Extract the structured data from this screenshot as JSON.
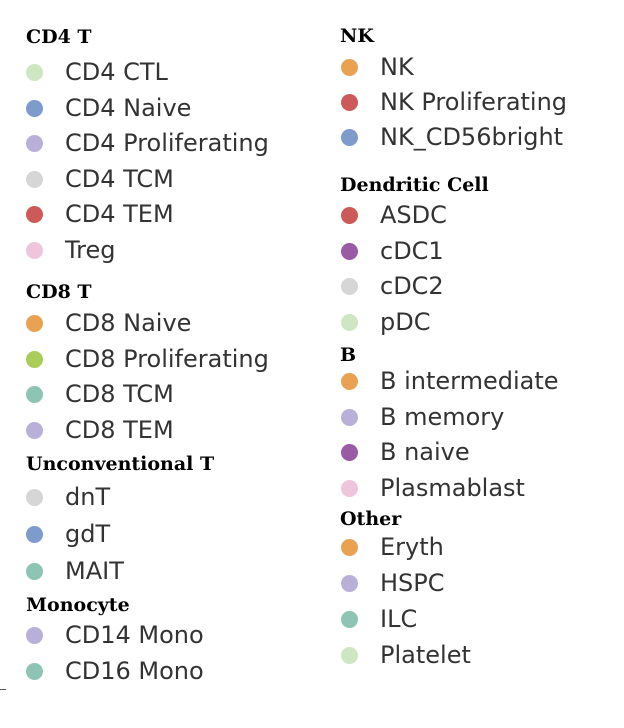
{
  "chart_data": {
    "type": "legend",
    "columns": [
      {
        "groups": [
          {
            "title": "CD4 T",
            "items": [
              {
                "label": "CD4 CTL",
                "color": "#cfe6c3"
              },
              {
                "label": "CD4 Naive",
                "color": "#7d9ccb"
              },
              {
                "label": "CD4 Proliferating",
                "color": "#b8b0d8"
              },
              {
                "label": "CD4 TCM",
                "color": "#d6d6d6"
              },
              {
                "label": "CD4 TEM",
                "color": "#cc5a58"
              },
              {
                "label": "Treg",
                "color": "#efc5dc"
              }
            ]
          },
          {
            "title": "CD8 T",
            "items": [
              {
                "label": "CD8 Naive",
                "color": "#e8a252"
              },
              {
                "label": "CD8 Proliferating",
                "color": "#a9cd58"
              },
              {
                "label": "CD8 TCM",
                "color": "#8ec4b4"
              },
              {
                "label": "CD8 TEM",
                "color": "#b8b0d8"
              }
            ]
          },
          {
            "title": "Unconventional T",
            "items": [
              {
                "label": "dnT",
                "color": "#d6d6d6"
              },
              {
                "label": "gdT",
                "color": "#7d9ccb"
              },
              {
                "label": "MAIT",
                "color": "#8ec4b4"
              }
            ]
          },
          {
            "title": "Monocyte",
            "items": [
              {
                "label": "CD14 Mono",
                "color": "#b8b0d8"
              },
              {
                "label": "CD16 Mono",
                "color": "#8ec4b4"
              }
            ]
          }
        ]
      },
      {
        "groups": [
          {
            "title": "NK",
            "items": [
              {
                "label": "NK",
                "color": "#e8a252"
              },
              {
                "label": "NK Proliferating",
                "color": "#cc5a58"
              },
              {
                "label": "NK_CD56bright",
                "color": "#7d9ccb"
              }
            ]
          },
          {
            "title": "Dendritic Cell",
            "items": [
              {
                "label": "ASDC",
                "color": "#cc5a58"
              },
              {
                "label": "cDC1",
                "color": "#9a5ba6"
              },
              {
                "label": "cDC2",
                "color": "#d6d6d6"
              },
              {
                "label": "pDC",
                "color": "#cfe6c3"
              }
            ]
          },
          {
            "title": "B",
            "items": [
              {
                "label": "B intermediate",
                "color": "#e8a252"
              },
              {
                "label": "B memory",
                "color": "#b8b0d8"
              },
              {
                "label": "B naive",
                "color": "#9a5ba6"
              },
              {
                "label": "Plasmablast",
                "color": "#efc5dc"
              }
            ]
          },
          {
            "title": "Other",
            "items": [
              {
                "label": "Eryth",
                "color": "#e8a252"
              },
              {
                "label": "HSPC",
                "color": "#b8b0d8"
              },
              {
                "label": "ILC",
                "color": "#8ec4b4"
              },
              {
                "label": "Platelet",
                "color": "#cfe6c3"
              }
            ]
          }
        ]
      }
    ]
  }
}
